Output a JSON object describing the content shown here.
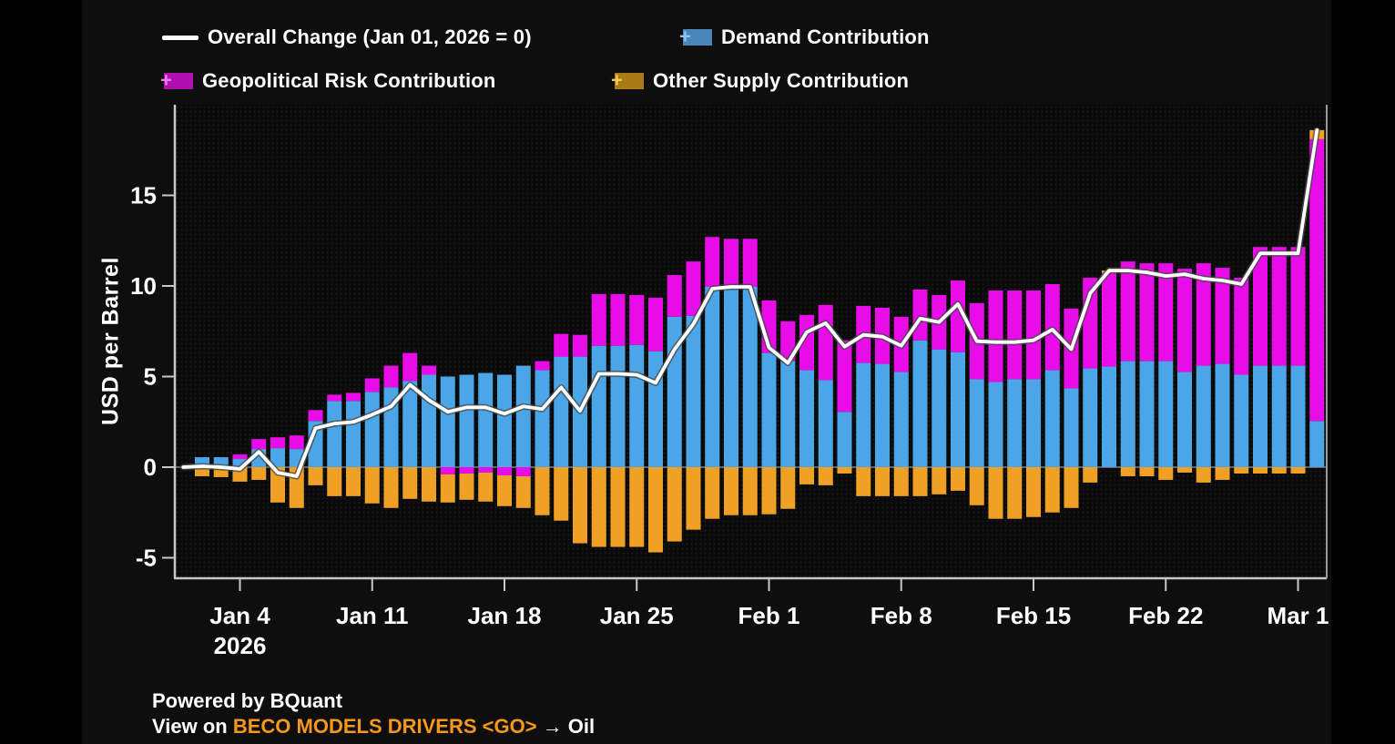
{
  "colors": {
    "background": "#000000",
    "canvas": "#0E0E0E",
    "plot_background": "#0A0A0A",
    "axis": "#C8C8C8",
    "zero_line": "#7E7E7E",
    "text": "#FFFFFF",
    "demand": "#4BA6E8",
    "geopolitical": "#E80CE8",
    "other_supply": "#F0A125",
    "overall_line": "#FFFFFF",
    "legend_swatch_demand": "#4A86BC",
    "legend_swatch_demand_plus": "#8FC4EE",
    "legend_swatch_geopolitical": "#AF10AF",
    "legend_swatch_geopolitical_plus": "#EE7FEE",
    "legend_swatch_other_supply": "#A87B17",
    "legend_swatch_other_supply_plus": "#EFC75A",
    "footer_link": "#F7981C"
  },
  "legend": {
    "overall_label": "Overall Change (Jan 01, 2026 = 0)",
    "demand_label": "Demand Contribution",
    "geopolitical_label": "Geopolitical Risk Contribution",
    "other_supply_label": "Other Supply Contribution"
  },
  "y_axis": {
    "title": "USD per Barrel",
    "ticks": [
      {
        "value": -5,
        "label": "-5"
      },
      {
        "value": 0,
        "label": "0"
      },
      {
        "value": 5,
        "label": "5"
      },
      {
        "value": 10,
        "label": "10"
      },
      {
        "value": 15,
        "label": "15"
      }
    ]
  },
  "x_axis": {
    "year_label": "2026",
    "ticks": [
      {
        "day_index": 2,
        "label": "Jan 4"
      },
      {
        "day_index": 9,
        "label": "Jan 11"
      },
      {
        "day_index": 16,
        "label": "Jan 18"
      },
      {
        "day_index": 23,
        "label": "Jan 25"
      },
      {
        "day_index": 30,
        "label": "Feb 1"
      },
      {
        "day_index": 37,
        "label": "Feb 8"
      },
      {
        "day_index": 44,
        "label": "Feb 15"
      },
      {
        "day_index": 51,
        "label": "Feb 22"
      },
      {
        "day_index": 58,
        "label": "Mar 1"
      }
    ]
  },
  "footer": {
    "line1": "Powered by BQuant",
    "line2_prefix": "View on ",
    "line2_link": "BECO MODELS DRIVERS <GO>",
    "line2_suffix": " → Oil"
  },
  "chart_data": {
    "type": "bar",
    "subtype": "stacked-bars-with-line",
    "title": "",
    "xlabel": "",
    "ylabel": "USD per Barrel",
    "ylim": [
      -6.5,
      19.5
    ],
    "y_ticks": [
      -5,
      0,
      5,
      10,
      15
    ],
    "grid": false,
    "legend_position": "top",
    "line_anchor": {
      "label": "Jan 1",
      "value": 0
    },
    "categories": [
      "Jan 2",
      "Jan 3",
      "Jan 4",
      "Jan 5",
      "Jan 6",
      "Jan 7",
      "Jan 8",
      "Jan 9",
      "Jan 10",
      "Jan 11",
      "Jan 12",
      "Jan 13",
      "Jan 14",
      "Jan 15",
      "Jan 16",
      "Jan 17",
      "Jan 18",
      "Jan 19",
      "Jan 20",
      "Jan 21",
      "Jan 22",
      "Jan 23",
      "Jan 24",
      "Jan 25",
      "Jan 26",
      "Jan 27",
      "Jan 28",
      "Jan 29",
      "Jan 30",
      "Jan 31",
      "Feb 1",
      "Feb 2",
      "Feb 3",
      "Feb 4",
      "Feb 5",
      "Feb 6",
      "Feb 7",
      "Feb 8",
      "Feb 9",
      "Feb 10",
      "Feb 11",
      "Feb 12",
      "Feb 13",
      "Feb 14",
      "Feb 15",
      "Feb 16",
      "Feb 17",
      "Feb 18",
      "Feb 19",
      "Feb 20",
      "Feb 21",
      "Feb 22",
      "Feb 23",
      "Feb 24",
      "Feb 25",
      "Feb 26",
      "Feb 27",
      "Feb 28",
      "Mar 1",
      "Mar 2"
    ],
    "series": [
      {
        "name": "Demand Contribution",
        "color_key": "demand",
        "values": [
          0.55,
          0.55,
          0.45,
          1.0,
          1.05,
          1.0,
          2.55,
          3.65,
          3.65,
          4.15,
          4.4,
          4.75,
          5.1,
          5.0,
          5.1,
          5.2,
          5.1,
          5.6,
          5.35,
          6.1,
          6.1,
          6.7,
          6.7,
          6.75,
          6.4,
          8.3,
          8.35,
          9.95,
          9.95,
          9.95,
          6.3,
          5.85,
          5.35,
          4.8,
          3.05,
          5.75,
          5.7,
          5.25,
          7.0,
          6.5,
          6.35,
          4.85,
          4.7,
          4.85,
          4.85,
          5.35,
          4.35,
          5.45,
          5.55,
          5.85,
          5.85,
          5.85,
          5.25,
          5.6,
          5.7,
          5.1,
          5.6,
          5.6,
          5.6,
          2.55
        ]
      },
      {
        "name": "Geopolitical Risk Contribution",
        "color_key": "geopolitical",
        "values": [
          0,
          0,
          0.25,
          0.55,
          0.6,
          0.75,
          0.6,
          0.35,
          0.45,
          0.75,
          1.2,
          1.55,
          0.5,
          -0.4,
          -0.35,
          -0.3,
          -0.45,
          -0.5,
          0.5,
          1.25,
          1.2,
          2.85,
          2.85,
          2.75,
          2.95,
          2.3,
          3.0,
          2.75,
          2.65,
          2.65,
          2.9,
          2.2,
          3.05,
          4.15,
          3.95,
          3.15,
          3.1,
          3.05,
          2.8,
          3.0,
          3.95,
          4.2,
          5.05,
          4.9,
          4.9,
          4.75,
          4.4,
          5.0,
          5.15,
          5.5,
          5.4,
          5.4,
          5.7,
          5.65,
          5.3,
          5.35,
          6.55,
          6.55,
          6.55,
          15.55
        ]
      },
      {
        "name": "Other Supply Contribution",
        "color_key": "other_supply",
        "values": [
          -0.5,
          -0.55,
          -0.8,
          -0.7,
          -1.95,
          -2.25,
          -1.0,
          -1.6,
          -1.6,
          -2.0,
          -2.25,
          -1.75,
          -1.9,
          -1.55,
          -1.45,
          -1.6,
          -1.7,
          -1.75,
          -2.65,
          -2.95,
          -4.2,
          -4.4,
          -4.4,
          -4.4,
          -4.7,
          -4.1,
          -3.45,
          -2.85,
          -2.65,
          -2.65,
          -2.6,
          -2.3,
          -0.95,
          -1.0,
          -0.35,
          -1.6,
          -1.6,
          -1.6,
          -1.6,
          -1.5,
          -1.3,
          -2.1,
          -2.85,
          -2.85,
          -2.75,
          -2.5,
          -2.25,
          -0.85,
          0.15,
          -0.5,
          -0.5,
          -0.7,
          -0.3,
          -0.85,
          -0.7,
          -0.35,
          -0.35,
          -0.35,
          -0.35,
          0.5
        ]
      }
    ],
    "overall_line": {
      "name": "Overall Change (Jan 01, 2026 = 0)",
      "color_key": "overall_line",
      "values": [
        0.05,
        0.0,
        -0.1,
        0.85,
        -0.3,
        -0.5,
        2.15,
        2.4,
        2.5,
        2.9,
        3.35,
        4.55,
        3.7,
        3.05,
        3.3,
        3.3,
        2.95,
        3.35,
        3.2,
        4.4,
        3.1,
        5.15,
        5.15,
        5.1,
        4.65,
        6.5,
        7.9,
        9.85,
        9.95,
        9.95,
        6.6,
        5.75,
        7.45,
        7.95,
        6.65,
        7.3,
        7.2,
        6.7,
        8.2,
        8.0,
        9.0,
        6.95,
        6.9,
        6.9,
        7.0,
        7.6,
        6.5,
        9.6,
        10.85,
        10.85,
        10.75,
        10.55,
        10.65,
        10.4,
        10.3,
        10.1,
        11.8,
        11.8,
        11.8,
        18.6
      ]
    }
  }
}
